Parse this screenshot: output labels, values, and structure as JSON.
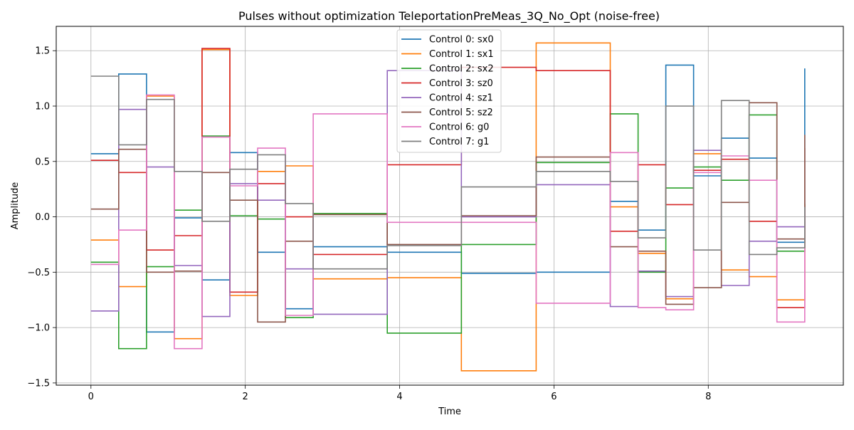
{
  "chart_data": {
    "type": "line",
    "step": "post",
    "title": "Pulses without optimization TeleportationPreMeas_3Q_No_Opt (noise-free)",
    "xlabel": "Time",
    "ylabel": "Amplitude",
    "xlim": [
      -0.45,
      9.75
    ],
    "ylim": [
      -1.52,
      1.72
    ],
    "x_ticks": [
      0,
      2,
      4,
      6,
      8
    ],
    "x_tick_labels": [
      "0",
      "2",
      "4",
      "6",
      "8"
    ],
    "y_ticks": [
      -1.5,
      -1.0,
      -0.5,
      0.0,
      0.5,
      1.0,
      1.5
    ],
    "y_tick_labels": [
      "−1.5",
      "−1.0",
      "−0.5",
      "0.0",
      "0.5",
      "1.0",
      "1.5"
    ],
    "grid": true,
    "legend_position": "upper center",
    "x": [
      0,
      0.36,
      0.72,
      1.08,
      1.44,
      1.8,
      2.16,
      2.52,
      2.88,
      3.84,
      4.8,
      5.77,
      6.73,
      7.09,
      7.45,
      7.81,
      8.17,
      8.53,
      8.89,
      9.25
    ],
    "series": [
      {
        "name": "Control 0: sx0",
        "color": "#1f77b4",
        "values": [
          0.57,
          1.29,
          -1.04,
          -0.01,
          -0.57,
          0.58,
          -0.32,
          -0.83,
          -0.27,
          -0.32,
          -0.51,
          -0.5,
          0.14,
          -0.12,
          1.37,
          0.37,
          0.71,
          0.53,
          -0.23,
          1.34
        ]
      },
      {
        "name": "Control 1: sx1",
        "color": "#ff7f0e",
        "values": [
          -0.21,
          -0.63,
          1.09,
          -1.1,
          1.51,
          -0.71,
          0.41,
          0.46,
          -0.56,
          -0.55,
          -1.39,
          1.57,
          0.09,
          -0.33,
          -0.74,
          0.57,
          -0.48,
          -0.54,
          -0.75,
          0.11
        ]
      },
      {
        "name": "Control 2: sx2",
        "color": "#2ca02c",
        "values": [
          -0.41,
          -1.19,
          -0.45,
          0.06,
          0.73,
          0.01,
          -0.02,
          -0.91,
          0.03,
          -1.05,
          -0.25,
          0.49,
          0.93,
          -0.5,
          0.26,
          0.45,
          0.33,
          0.92,
          -0.31,
          0.12
        ]
      },
      {
        "name": "Control 3: sz0",
        "color": "#d62728",
        "values": [
          0.51,
          0.4,
          -0.3,
          -0.17,
          1.52,
          -0.68,
          0.3,
          0.0,
          -0.34,
          0.47,
          1.35,
          1.32,
          -0.13,
          0.47,
          0.11,
          0.42,
          0.52,
          -0.04,
          -0.82,
          0.62
        ]
      },
      {
        "name": "Control 4: sz1",
        "color": "#9467bd",
        "values": [
          -0.85,
          0.97,
          0.45,
          -0.44,
          -0.9,
          0.3,
          0.15,
          -0.47,
          -0.88,
          1.32,
          0.0,
          0.29,
          -0.81,
          -0.49,
          -0.72,
          0.6,
          -0.62,
          -0.22,
          -0.09,
          0.1
        ]
      },
      {
        "name": "Control 5: sz2",
        "color": "#8c564b",
        "values": [
          0.07,
          0.61,
          -0.5,
          -0.49,
          0.4,
          0.15,
          -0.95,
          -0.22,
          0.02,
          -0.25,
          0.01,
          0.54,
          -0.27,
          -0.31,
          -0.79,
          -0.64,
          0.13,
          1.03,
          -0.2,
          0.74
        ]
      },
      {
        "name": "Control 6: g0",
        "color": "#e377c2",
        "values": [
          -0.43,
          -0.12,
          1.1,
          -1.19,
          0.72,
          0.28,
          0.62,
          -0.89,
          0.93,
          -0.05,
          -0.05,
          -0.78,
          0.58,
          -0.82,
          -0.84,
          0.4,
          0.55,
          0.33,
          -0.95,
          0.05
        ]
      },
      {
        "name": "Control 7: g1",
        "color": "#7f7f7f",
        "values": [
          1.27,
          0.65,
          1.06,
          0.41,
          -0.04,
          0.43,
          0.56,
          0.12,
          -0.47,
          -0.26,
          0.27,
          0.41,
          0.32,
          -0.19,
          1.0,
          -0.3,
          1.05,
          -0.34,
          -0.28,
          0.09
        ]
      }
    ]
  }
}
